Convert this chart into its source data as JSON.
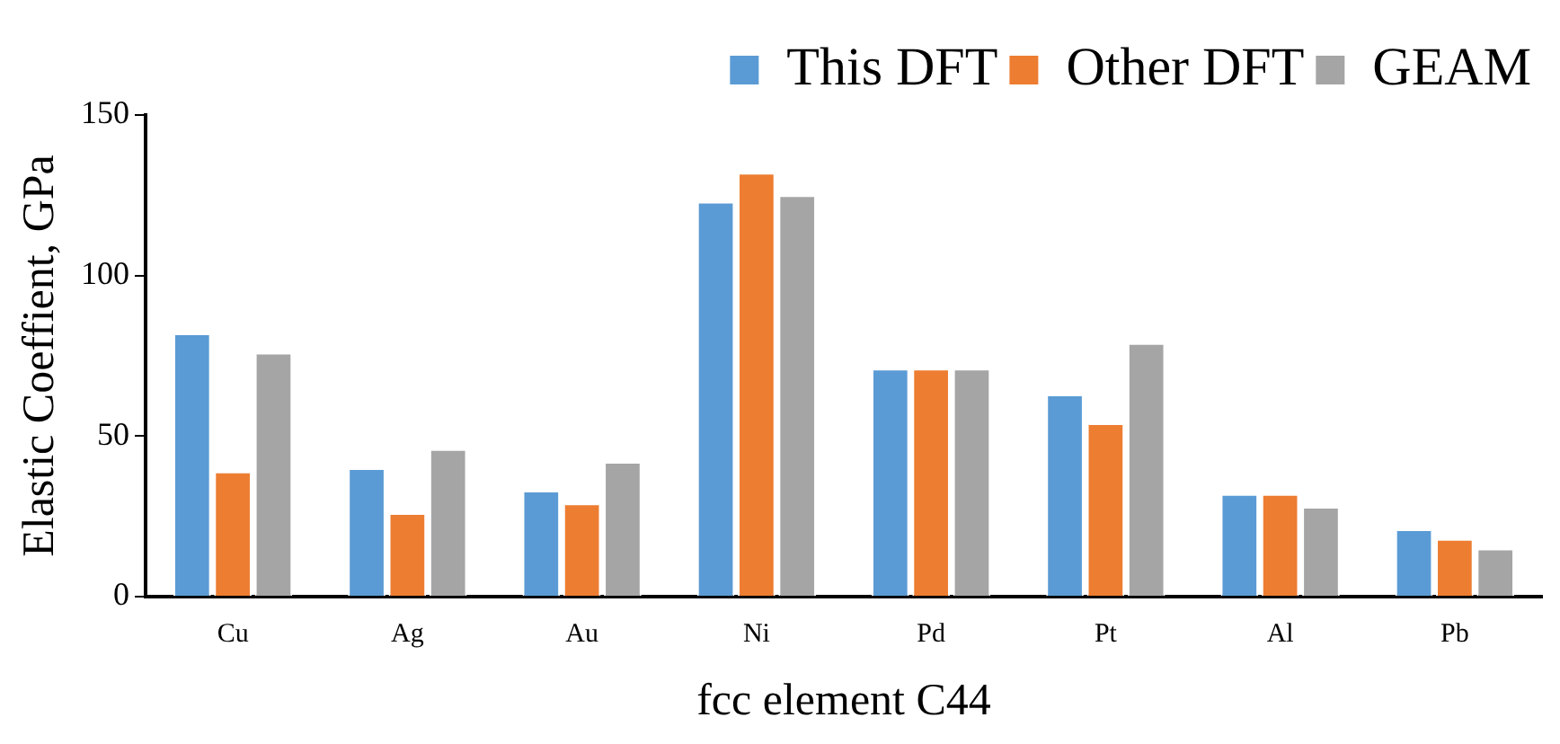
{
  "chart_data": {
    "type": "bar",
    "xlabel": "fcc element C44",
    "ylabel": "Elastic Coeffient, GPa",
    "categories": [
      "Cu",
      "Ag",
      "Au",
      "Ni",
      "Pd",
      "Pt",
      "Al",
      "Pb"
    ],
    "series": [
      {
        "name": "This DFT",
        "color": "#5b9bd5",
        "values": [
          82,
          40,
          33,
          123,
          71,
          63,
          32,
          21
        ]
      },
      {
        "name": "Other DFT",
        "color": "#ed7d31",
        "values": [
          39,
          26,
          29,
          132,
          71,
          54,
          32,
          18
        ]
      },
      {
        "name": "GEAM",
        "color": "#a5a5a5",
        "values": [
          76,
          46,
          42,
          125,
          71,
          79,
          28,
          15
        ]
      }
    ],
    "ylim": [
      0,
      150
    ],
    "yticks": [
      0,
      50,
      100,
      150
    ],
    "grid": false,
    "legend": "top right"
  }
}
